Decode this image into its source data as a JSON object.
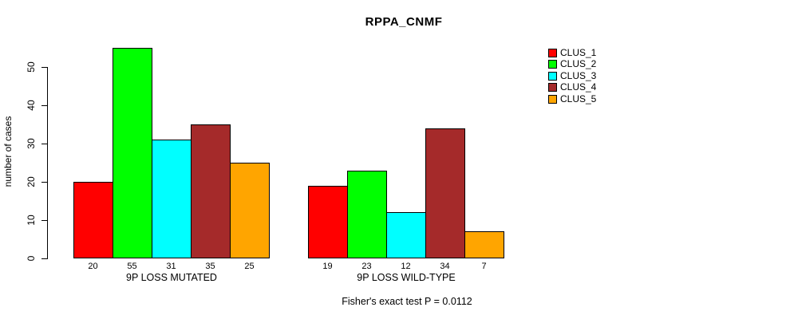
{
  "chart_data": {
    "type": "bar",
    "title": "RPPA_CNMF",
    "ylabel": "number of cases",
    "xlabel": "",
    "ylim": [
      0,
      55
    ],
    "yticks": [
      0,
      10,
      20,
      30,
      40,
      50
    ],
    "grid": false,
    "legend_position": "right",
    "groups": [
      "9P LOSS MUTATED",
      "9P LOSS WILD-TYPE"
    ],
    "series": [
      {
        "name": "CLUS_1",
        "color": "#FF0000",
        "values": [
          20,
          19
        ]
      },
      {
        "name": "CLUS_2",
        "color": "#00FF00",
        "values": [
          55,
          23
        ]
      },
      {
        "name": "CLUS_3",
        "color": "#00FFFF",
        "values": [
          31,
          12
        ]
      },
      {
        "name": "CLUS_4",
        "color": "#A52A2A",
        "values": [
          35,
          34
        ]
      },
      {
        "name": "CLUS_5",
        "color": "#FFA500",
        "values": [
          25,
          7
        ]
      }
    ],
    "bar_value_labels_shown": true,
    "annotation": "Fisher's exact test P = 0.0112"
  }
}
